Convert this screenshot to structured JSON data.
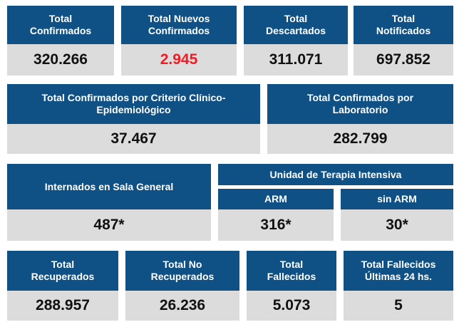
{
  "row1": [
    {
      "label": "Total\nConfirmados",
      "value": "320.266"
    },
    {
      "label": "Total Nuevos\nConfirmados",
      "value": "2.945"
    },
    {
      "label": "Total\nDescartados",
      "value": "311.071"
    },
    {
      "label": "Total\nNotificados",
      "value": "697.852"
    }
  ],
  "row2": [
    {
      "label": "Total Confirmados por Criterio Clínico-\nEpidemiológico",
      "value": "37.467"
    },
    {
      "label": "Total Confirmados por\nLaboratorio",
      "value": "282.799"
    }
  ],
  "row3": {
    "internados": {
      "label": "Internados en Sala General",
      "value": "487*"
    },
    "uti_title": "Unidad de Terapia Intensiva",
    "arm": {
      "label": "ARM",
      "value": "316*"
    },
    "sin_arm": {
      "label": "sin ARM",
      "value": "30*"
    }
  },
  "row4": [
    {
      "label": "Total\nRecuperados",
      "value": "288.957"
    },
    {
      "label": "Total No\nRecuperados",
      "value": "26.236"
    },
    {
      "label": "Total\nFallecidos",
      "value": "5.073"
    },
    {
      "label": "Total Fallecidos\nÚltimas 24 hs.",
      "value": "5"
    }
  ],
  "colors": {
    "header": "#0f5185",
    "value_bg": "#dcdcdd",
    "highlight": "#ee1c24"
  }
}
